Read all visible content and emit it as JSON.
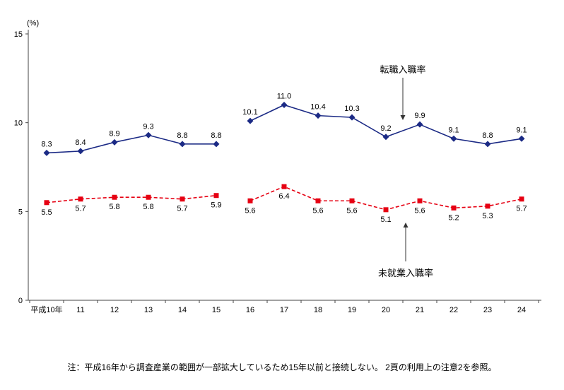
{
  "chart_data": {
    "type": "line",
    "title": "",
    "xlabel": "",
    "ylabel": "(%)",
    "ylim": [
      0,
      15
    ],
    "yticks": [
      0,
      5,
      10,
      15
    ],
    "grid": false,
    "legend_position": "none",
    "categories": [
      "平成10年",
      "11",
      "12",
      "13",
      "14",
      "15",
      "16",
      "17",
      "18",
      "19",
      "20",
      "21",
      "22",
      "23",
      "24"
    ],
    "break_after_index": 5,
    "series": [
      {
        "name": "転職入職率",
        "color": "#1b2a85",
        "marker": "diamond",
        "line_style": "solid",
        "label_position": "above",
        "values": [
          8.3,
          8.4,
          8.9,
          9.3,
          8.8,
          8.8,
          10.1,
          11.0,
          10.4,
          10.3,
          9.2,
          9.9,
          9.1,
          8.8,
          9.1
        ]
      },
      {
        "name": "未就業入職率",
        "color": "#e60012",
        "marker": "square",
        "line_style": "dashed",
        "label_position": "below",
        "values": [
          5.5,
          5.7,
          5.8,
          5.8,
          5.7,
          5.9,
          5.6,
          6.4,
          5.6,
          5.6,
          5.1,
          5.6,
          5.2,
          5.3,
          5.7
        ]
      }
    ],
    "annotations": [
      {
        "text": "転職入職率",
        "series": "転職入職率",
        "direction": "down"
      },
      {
        "text": "未就業入職率",
        "series": "未就業入職率",
        "direction": "up"
      }
    ]
  },
  "note": "注：平成16年から調査産業の範囲が一部拡大しているため15年以前と接続しない。 2頁の利用上の注意2を参照。"
}
